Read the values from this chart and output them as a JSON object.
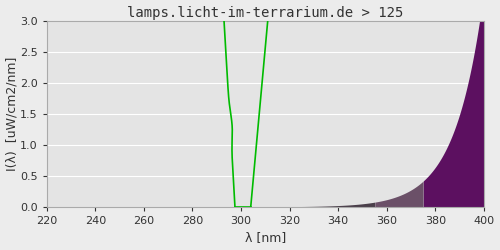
{
  "title": "lamps.licht-im-terrarium.de > 125",
  "xlabel": "λ [nm]",
  "ylabel": "I(λ)  [uW/cm2/nm]",
  "xlim": [
    220,
    400
  ],
  "ylim": [
    0,
    3.0
  ],
  "yticks": [
    0.0,
    0.5,
    1.0,
    1.5,
    2.0,
    2.5,
    3.0
  ],
  "xticks": [
    220,
    240,
    260,
    280,
    300,
    320,
    340,
    360,
    380,
    400
  ],
  "bg_color": "#ececec",
  "plot_bg_color": "#e4e4e4",
  "grid_color": "#ffffff",
  "title_fontsize": 10,
  "axis_fontsize": 9,
  "tick_fontsize": 8,
  "band_defs": [
    [
      220,
      285,
      "#181818"
    ],
    [
      285,
      320,
      "#282228"
    ],
    [
      320,
      355,
      "#4a3f4a"
    ],
    [
      355,
      375,
      "#6b5068"
    ],
    [
      375,
      400,
      "#5c1060"
    ]
  ]
}
